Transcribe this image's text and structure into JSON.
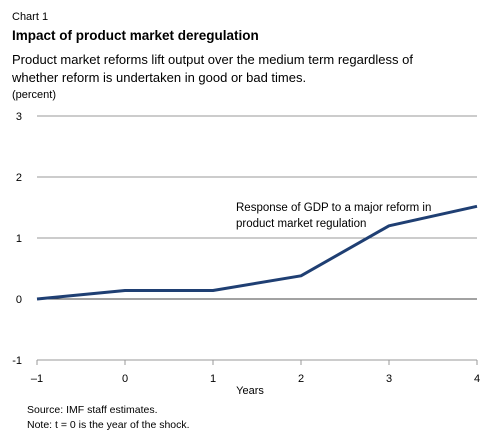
{
  "header": {
    "chart_number": "Chart 1",
    "title": "Impact of product market deregulation",
    "subtitle_line1": "Product market reforms lift output over the medium term regardless of",
    "subtitle_line2": "whether reform is undertaken in good or bad times.",
    "unit": "(percent)"
  },
  "footer": {
    "source": "Source: IMF staff estimates.",
    "note": "Note: t = 0 is the year of the shock."
  },
  "colors": {
    "line": "#1f3f73",
    "grid": "#999999",
    "axis": "#444444"
  },
  "chart_data": {
    "type": "line",
    "x": [
      -1,
      0,
      1,
      2,
      3,
      4
    ],
    "x_tick_labels": [
      "–1",
      "0",
      "1",
      "2",
      "3",
      "4"
    ],
    "y_tick_labels": [
      "-1",
      "0",
      "1",
      "2",
      "3"
    ],
    "xlabel": "Years",
    "xlim": [
      -1,
      4
    ],
    "ylim": [
      -1,
      3
    ],
    "grid": true,
    "series": [
      {
        "values": [
          0,
          0.14,
          0.14,
          0.38,
          1.2,
          1.52
        ]
      }
    ],
    "annotation": {
      "line1": "Response of GDP to a major reform in",
      "line2": "product market regulation"
    }
  }
}
